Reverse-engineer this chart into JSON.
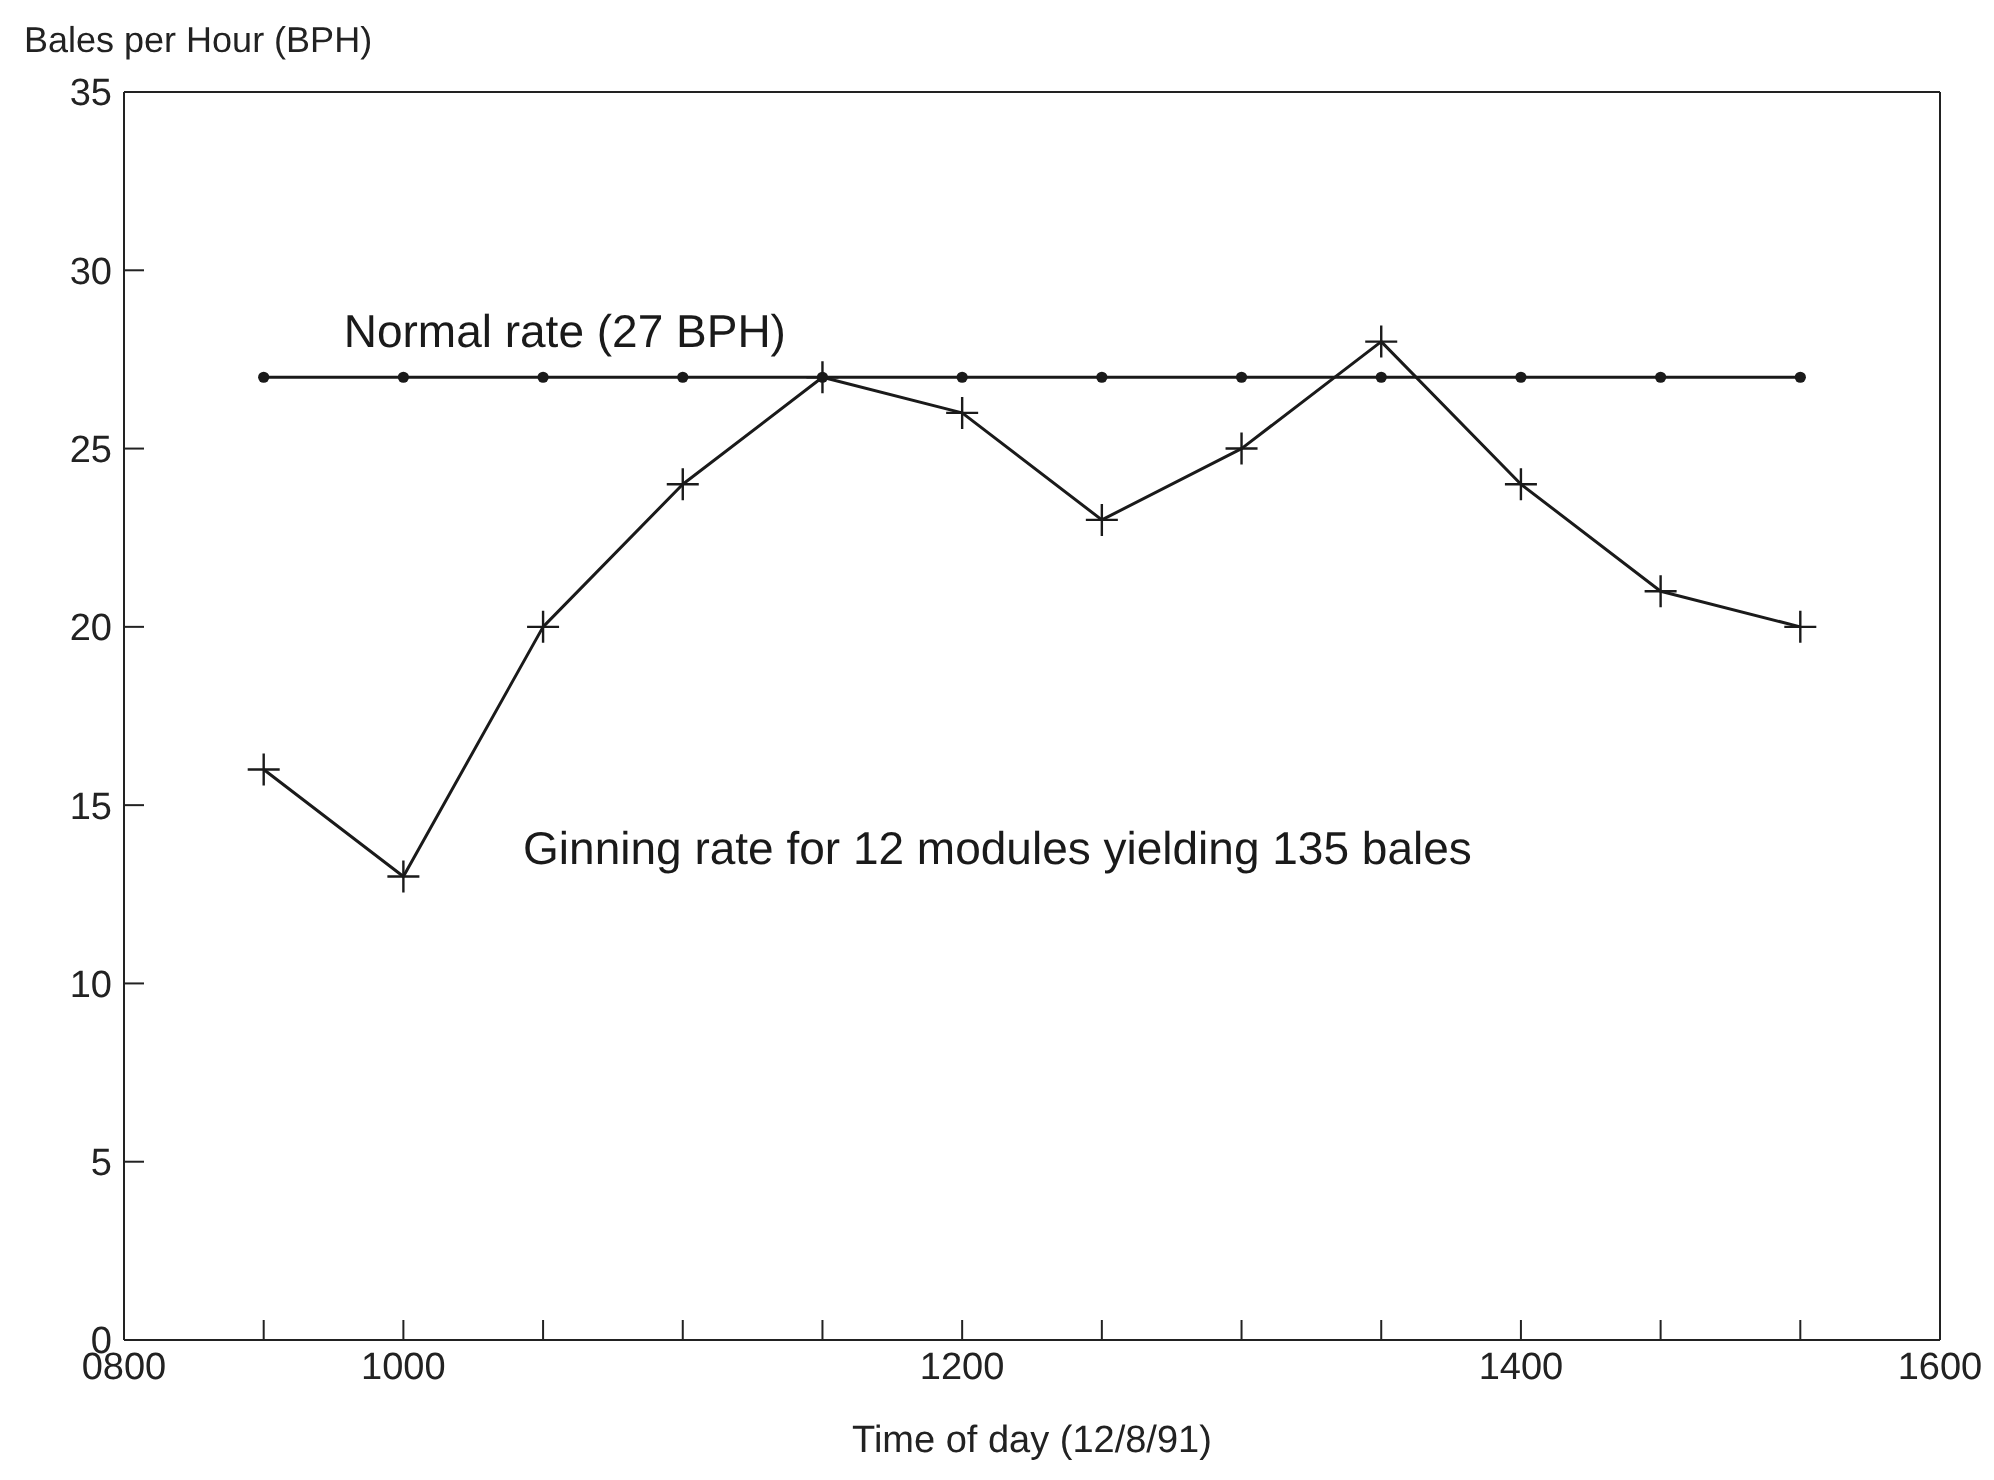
{
  "chart_data": {
    "type": "line",
    "xlabel": "Time of day (12/8/91)",
    "ylabel": "Bales per Hour (BPH)",
    "categories": [
      "0800",
      null,
      "1000",
      null,
      null,
      null,
      "1200",
      null,
      null,
      null,
      "1400",
      null,
      null,
      "1600"
    ],
    "series": [
      {
        "name": "Normal rate (27 BPH)",
        "color": "#1a1a1a",
        "marker": "circle",
        "values": [
          null,
          27,
          27,
          27,
          27,
          27,
          27,
          27,
          27,
          27,
          27,
          27,
          27,
          null
        ]
      },
      {
        "name": "Ginning rate for 12 modules yielding 135 bales",
        "color": "#1a1a1a",
        "marker": "cross",
        "values": [
          null,
          16,
          13,
          20,
          24,
          27,
          26,
          23,
          25,
          28,
          24,
          21,
          20,
          null
        ]
      }
    ],
    "ylim": [
      0,
      35
    ],
    "yticks": [
      0,
      5,
      10,
      15,
      20,
      25,
      30,
      35
    ],
    "grid": false,
    "legend": false,
    "line_style": "solid"
  }
}
